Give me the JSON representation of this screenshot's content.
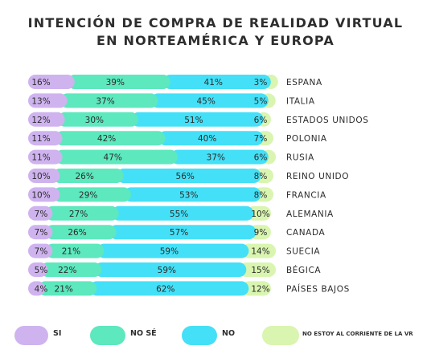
{
  "chart_data": {
    "type": "bar",
    "stacked": true,
    "orientation": "horizontal",
    "title": "INTENCIÓN DE COMPRA DE REALIDAD VIRTUAL EN NORTEAMÉRICA Y EUROPA",
    "title_lines": [
      "INTENCIÓN DE COMPRA DE REALIDAD VIRTUAL",
      "EN NORTEAMÉRICA Y EUROPA"
    ],
    "categories": [
      "ESPANA",
      "ITALIA",
      "ESTADOS UNIDOS",
      "POLONIA",
      "RUSIA",
      "REINO UNIDO",
      "FRANCIA",
      "ALEMANIA",
      "CANADA",
      "SUECIA",
      "BÉGICA",
      "PAÍSES BAJOS"
    ],
    "series": [
      {
        "name": "SI",
        "color": "#cfb3ef",
        "values": [
          16,
          13,
          12,
          11,
          11,
          10,
          10,
          7,
          7,
          7,
          5,
          4
        ]
      },
      {
        "name": "NO SÉ",
        "color": "#5de8bd",
        "values": [
          39,
          37,
          30,
          42,
          47,
          26,
          29,
          27,
          26,
          21,
          22,
          21
        ]
      },
      {
        "name": "NO",
        "color": "#44e0f7",
        "values": [
          41,
          45,
          51,
          40,
          37,
          56,
          53,
          55,
          57,
          59,
          59,
          62
        ]
      },
      {
        "name": "NO ESTOY AL CORRIENTE DE LA  VR",
        "color": "#d9f5b0",
        "values": [
          3,
          5,
          6,
          7,
          6,
          8,
          8,
          10,
          9,
          14,
          15,
          12
        ]
      }
    ],
    "value_suffix": "%",
    "legend_position": "bottom",
    "grid": false
  }
}
